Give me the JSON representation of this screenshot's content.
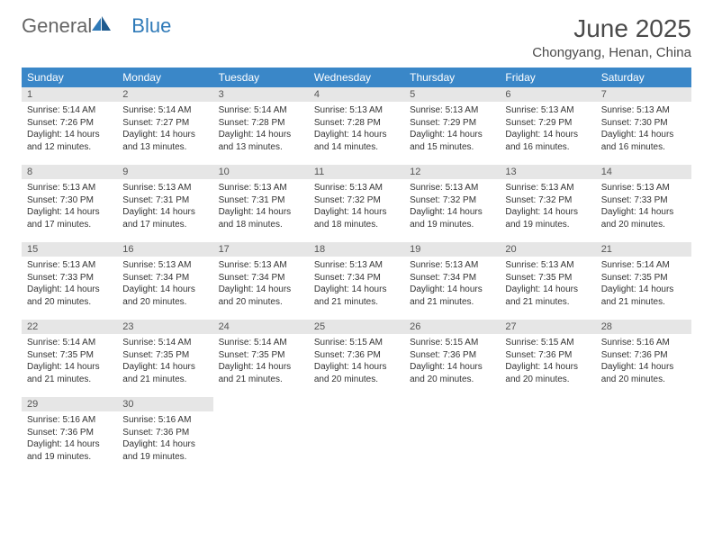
{
  "logo": {
    "part1": "General",
    "part2": "Blue"
  },
  "title": "June 2025",
  "location": "Chongyang, Henan, China",
  "colors": {
    "header_bg": "#3a87c8",
    "header_text": "#ffffff",
    "daynum_bg": "#e6e6e6",
    "row_border": "#3a87c8",
    "logo_blue": "#2f7ab8",
    "text": "#333333"
  },
  "weekdays": [
    "Sunday",
    "Monday",
    "Tuesday",
    "Wednesday",
    "Thursday",
    "Friday",
    "Saturday"
  ],
  "weeks": [
    [
      {
        "n": "1",
        "sr": "Sunrise: 5:14 AM",
        "ss": "Sunset: 7:26 PM",
        "dl": "Daylight: 14 hours and 12 minutes."
      },
      {
        "n": "2",
        "sr": "Sunrise: 5:14 AM",
        "ss": "Sunset: 7:27 PM",
        "dl": "Daylight: 14 hours and 13 minutes."
      },
      {
        "n": "3",
        "sr": "Sunrise: 5:14 AM",
        "ss": "Sunset: 7:28 PM",
        "dl": "Daylight: 14 hours and 13 minutes."
      },
      {
        "n": "4",
        "sr": "Sunrise: 5:13 AM",
        "ss": "Sunset: 7:28 PM",
        "dl": "Daylight: 14 hours and 14 minutes."
      },
      {
        "n": "5",
        "sr": "Sunrise: 5:13 AM",
        "ss": "Sunset: 7:29 PM",
        "dl": "Daylight: 14 hours and 15 minutes."
      },
      {
        "n": "6",
        "sr": "Sunrise: 5:13 AM",
        "ss": "Sunset: 7:29 PM",
        "dl": "Daylight: 14 hours and 16 minutes."
      },
      {
        "n": "7",
        "sr": "Sunrise: 5:13 AM",
        "ss": "Sunset: 7:30 PM",
        "dl": "Daylight: 14 hours and 16 minutes."
      }
    ],
    [
      {
        "n": "8",
        "sr": "Sunrise: 5:13 AM",
        "ss": "Sunset: 7:30 PM",
        "dl": "Daylight: 14 hours and 17 minutes."
      },
      {
        "n": "9",
        "sr": "Sunrise: 5:13 AM",
        "ss": "Sunset: 7:31 PM",
        "dl": "Daylight: 14 hours and 17 minutes."
      },
      {
        "n": "10",
        "sr": "Sunrise: 5:13 AM",
        "ss": "Sunset: 7:31 PM",
        "dl": "Daylight: 14 hours and 18 minutes."
      },
      {
        "n": "11",
        "sr": "Sunrise: 5:13 AM",
        "ss": "Sunset: 7:32 PM",
        "dl": "Daylight: 14 hours and 18 minutes."
      },
      {
        "n": "12",
        "sr": "Sunrise: 5:13 AM",
        "ss": "Sunset: 7:32 PM",
        "dl": "Daylight: 14 hours and 19 minutes."
      },
      {
        "n": "13",
        "sr": "Sunrise: 5:13 AM",
        "ss": "Sunset: 7:32 PM",
        "dl": "Daylight: 14 hours and 19 minutes."
      },
      {
        "n": "14",
        "sr": "Sunrise: 5:13 AM",
        "ss": "Sunset: 7:33 PM",
        "dl": "Daylight: 14 hours and 20 minutes."
      }
    ],
    [
      {
        "n": "15",
        "sr": "Sunrise: 5:13 AM",
        "ss": "Sunset: 7:33 PM",
        "dl": "Daylight: 14 hours and 20 minutes."
      },
      {
        "n": "16",
        "sr": "Sunrise: 5:13 AM",
        "ss": "Sunset: 7:34 PM",
        "dl": "Daylight: 14 hours and 20 minutes."
      },
      {
        "n": "17",
        "sr": "Sunrise: 5:13 AM",
        "ss": "Sunset: 7:34 PM",
        "dl": "Daylight: 14 hours and 20 minutes."
      },
      {
        "n": "18",
        "sr": "Sunrise: 5:13 AM",
        "ss": "Sunset: 7:34 PM",
        "dl": "Daylight: 14 hours and 21 minutes."
      },
      {
        "n": "19",
        "sr": "Sunrise: 5:13 AM",
        "ss": "Sunset: 7:34 PM",
        "dl": "Daylight: 14 hours and 21 minutes."
      },
      {
        "n": "20",
        "sr": "Sunrise: 5:13 AM",
        "ss": "Sunset: 7:35 PM",
        "dl": "Daylight: 14 hours and 21 minutes."
      },
      {
        "n": "21",
        "sr": "Sunrise: 5:14 AM",
        "ss": "Sunset: 7:35 PM",
        "dl": "Daylight: 14 hours and 21 minutes."
      }
    ],
    [
      {
        "n": "22",
        "sr": "Sunrise: 5:14 AM",
        "ss": "Sunset: 7:35 PM",
        "dl": "Daylight: 14 hours and 21 minutes."
      },
      {
        "n": "23",
        "sr": "Sunrise: 5:14 AM",
        "ss": "Sunset: 7:35 PM",
        "dl": "Daylight: 14 hours and 21 minutes."
      },
      {
        "n": "24",
        "sr": "Sunrise: 5:14 AM",
        "ss": "Sunset: 7:35 PM",
        "dl": "Daylight: 14 hours and 21 minutes."
      },
      {
        "n": "25",
        "sr": "Sunrise: 5:15 AM",
        "ss": "Sunset: 7:36 PM",
        "dl": "Daylight: 14 hours and 20 minutes."
      },
      {
        "n": "26",
        "sr": "Sunrise: 5:15 AM",
        "ss": "Sunset: 7:36 PM",
        "dl": "Daylight: 14 hours and 20 minutes."
      },
      {
        "n": "27",
        "sr": "Sunrise: 5:15 AM",
        "ss": "Sunset: 7:36 PM",
        "dl": "Daylight: 14 hours and 20 minutes."
      },
      {
        "n": "28",
        "sr": "Sunrise: 5:16 AM",
        "ss": "Sunset: 7:36 PM",
        "dl": "Daylight: 14 hours and 20 minutes."
      }
    ],
    [
      {
        "n": "29",
        "sr": "Sunrise: 5:16 AM",
        "ss": "Sunset: 7:36 PM",
        "dl": "Daylight: 14 hours and 19 minutes."
      },
      {
        "n": "30",
        "sr": "Sunrise: 5:16 AM",
        "ss": "Sunset: 7:36 PM",
        "dl": "Daylight: 14 hours and 19 minutes."
      },
      null,
      null,
      null,
      null,
      null
    ]
  ]
}
